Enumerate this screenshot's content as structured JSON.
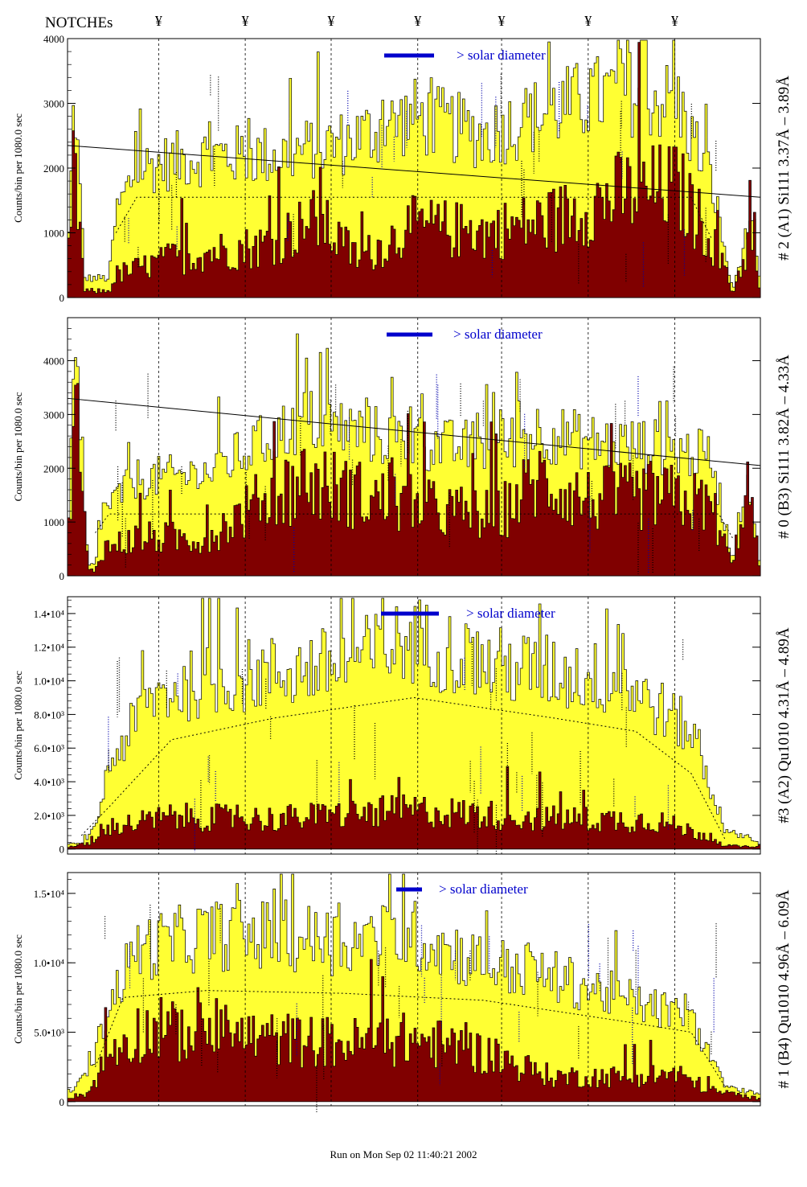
{
  "header": {
    "notches_label": "NOTCHEs",
    "notch_symbol": "¥"
  },
  "footer": "Run on Mon Sep 02 11:40:21 2002",
  "colors": {
    "total_fill": "#ffff33",
    "detail_fill": "#800000",
    "solar_bar": "#0000cc",
    "annotation_dark": "#000000",
    "annotation_blue": "#0000aa"
  },
  "notch_positions_frac": [
    0.1315,
    0.2565,
    0.3805,
    0.5055,
    0.6265,
    0.7515,
    0.8765
  ],
  "chart_data": [
    {
      "type": "area",
      "title": "",
      "ylabel": "Counts/bin per   1080.0 sec",
      "right_label": "# 2 (A1) Si111  3.37Å – 3.89Å",
      "solar_label": "> solar diameter",
      "ylim": [
        0,
        4000
      ],
      "yticks": [
        0,
        1000,
        2000,
        3000,
        4000
      ],
      "ytick_labels": [
        "0",
        "1000",
        "2000",
        "3000",
        "4000"
      ],
      "series": [
        {
          "name": "total",
          "profile": [
            [
              0,
              500
            ],
            [
              0.01,
              3200
            ],
            [
              0.025,
              300
            ],
            [
              0.06,
              300
            ],
            [
              0.07,
              1300
            ],
            [
              0.1,
              2000
            ],
            [
              0.2,
              2200
            ],
            [
              0.3,
              2200
            ],
            [
              0.4,
              2400
            ],
            [
              0.5,
              2800
            ],
            [
              0.6,
              2500
            ],
            [
              0.7,
              2900
            ],
            [
              0.8,
              3200
            ],
            [
              0.88,
              3000
            ],
            [
              0.93,
              1800
            ],
            [
              0.96,
              100
            ],
            [
              0.985,
              1200
            ],
            [
              1,
              200
            ]
          ]
        },
        {
          "name": "detail",
          "profile": [
            [
              0,
              400
            ],
            [
              0.01,
              2100
            ],
            [
              0.025,
              100
            ],
            [
              0.06,
              100
            ],
            [
              0.07,
              350
            ],
            [
              0.15,
              600
            ],
            [
              0.2,
              700
            ],
            [
              0.28,
              800
            ],
            [
              0.36,
              1200
            ],
            [
              0.42,
              600
            ],
            [
              0.5,
              1100
            ],
            [
              0.6,
              1000
            ],
            [
              0.7,
              1200
            ],
            [
              0.8,
              1600
            ],
            [
              0.88,
              1700
            ],
            [
              0.93,
              900
            ],
            [
              0.96,
              80
            ],
            [
              0.985,
              900
            ],
            [
              1,
              100
            ]
          ]
        }
      ],
      "trend_line": [
        [
          0,
          2350
        ],
        [
          1,
          1550
        ]
      ],
      "dotted_line": [
        [
          0.07,
          1000
        ],
        [
          0.1,
          1550
        ],
        [
          0.9,
          1550
        ],
        [
          0.93,
          900
        ]
      ]
    },
    {
      "type": "area",
      "title": "",
      "ylabel": "Counts/bin per   1080.0 sec",
      "right_label": "# 0 (B3) Si111  3.82Å – 4.33Å",
      "solar_label": "> solar diameter",
      "ylim": [
        0,
        4800
      ],
      "yticks": [
        0,
        1000,
        2000,
        3000,
        4000
      ],
      "ytick_labels": [
        "0",
        "1000",
        "2000",
        "3000",
        "4000"
      ],
      "series": [
        {
          "name": "total",
          "profile": [
            [
              0,
              400
            ],
            [
              0.01,
              3800
            ],
            [
              0.03,
              200
            ],
            [
              0.04,
              200
            ],
            [
              0.05,
              1200
            ],
            [
              0.1,
              1800
            ],
            [
              0.2,
              1900
            ],
            [
              0.27,
              2400
            ],
            [
              0.34,
              2900
            ],
            [
              0.45,
              2600
            ],
            [
              0.55,
              2400
            ],
            [
              0.62,
              2400
            ],
            [
              0.68,
              2700
            ],
            [
              0.75,
              2500
            ],
            [
              0.85,
              2400
            ],
            [
              0.93,
              2200
            ],
            [
              0.96,
              300
            ],
            [
              0.98,
              1900
            ],
            [
              1,
              200
            ]
          ]
        },
        {
          "name": "detail",
          "profile": [
            [
              0,
              300
            ],
            [
              0.01,
              3500
            ],
            [
              0.03,
              100
            ],
            [
              0.04,
              100
            ],
            [
              0.05,
              500
            ],
            [
              0.1,
              700
            ],
            [
              0.2,
              700
            ],
            [
              0.27,
              1300
            ],
            [
              0.34,
              1800
            ],
            [
              0.45,
              1400
            ],
            [
              0.55,
              1200
            ],
            [
              0.62,
              1100
            ],
            [
              0.68,
              1800
            ],
            [
              0.75,
              1400
            ],
            [
              0.85,
              1500
            ],
            [
              0.93,
              1300
            ],
            [
              0.96,
              150
            ],
            [
              0.98,
              1800
            ],
            [
              1,
              100
            ]
          ]
        }
      ],
      "trend_line": [
        [
          0,
          3300
        ],
        [
          1,
          2050
        ]
      ],
      "dotted_line": [
        [
          0.04,
          800
        ],
        [
          0.06,
          1150
        ],
        [
          0.94,
          1150
        ],
        [
          0.96,
          700
        ]
      ]
    },
    {
      "type": "area",
      "title": "",
      "ylabel": "Counts/bin per   1080.0 sec",
      "right_label": "#3 (A2) Qu1010  4.31Å – 4.89Å",
      "solar_label": "> solar diameter",
      "ylim": [
        -300,
        15000
      ],
      "yticks": [
        0,
        2000,
        4000,
        6000,
        8000,
        10000,
        12000,
        14000
      ],
      "ytick_labels": [
        "0",
        "2.0•10³",
        "4.0•10³",
        "6.0•10³",
        "8.0•10³",
        "1.0•10⁴",
        "1.2•10⁴",
        "1.4•10⁴"
      ],
      "series": [
        {
          "name": "total",
          "profile": [
            [
              0,
              300
            ],
            [
              0.02,
              300
            ],
            [
              0.04,
              1200
            ],
            [
              0.06,
              5000
            ],
            [
              0.12,
              9000
            ],
            [
              0.2,
              10000
            ],
            [
              0.3,
              10500
            ],
            [
              0.4,
              11000
            ],
            [
              0.5,
              12500
            ],
            [
              0.6,
              11000
            ],
            [
              0.7,
              10500
            ],
            [
              0.8,
              10000
            ],
            [
              0.9,
              7000
            ],
            [
              0.95,
              1000
            ],
            [
              0.98,
              800
            ],
            [
              1,
              300
            ]
          ]
        },
        {
          "name": "detail",
          "profile": [
            [
              0,
              100
            ],
            [
              0.04,
              400
            ],
            [
              0.06,
              1300
            ],
            [
              0.15,
              1900
            ],
            [
              0.3,
              1800
            ],
            [
              0.5,
              2300
            ],
            [
              0.7,
              1800
            ],
            [
              0.85,
              1700
            ],
            [
              0.92,
              800
            ],
            [
              0.95,
              200
            ],
            [
              1,
              100
            ]
          ]
        }
      ],
      "dotted_line": [
        [
          0.02,
          800
        ],
        [
          0.06,
          2500
        ],
        [
          0.15,
          6500
        ],
        [
          0.3,
          7800
        ],
        [
          0.5,
          9000
        ],
        [
          0.7,
          7800
        ],
        [
          0.82,
          7000
        ],
        [
          0.9,
          4500
        ],
        [
          0.95,
          500
        ]
      ]
    },
    {
      "type": "area",
      "title": "",
      "ylabel": "Counts/bin per   1080.0 sec",
      "right_label": "# 1 (B4) Qu1010 4.96Å – 6.09Å",
      "solar_label": "> solar diameter",
      "ylim": [
        -300,
        16500
      ],
      "yticks": [
        0,
        5000,
        10000,
        15000
      ],
      "ytick_labels": [
        "0",
        "5.0•10³",
        "1.0•10⁴",
        "1.5•10⁴"
      ],
      "series": [
        {
          "name": "total",
          "profile": [
            [
              0,
              500
            ],
            [
              0.03,
              2000
            ],
            [
              0.06,
              7000
            ],
            [
              0.1,
              11000
            ],
            [
              0.2,
              12000
            ],
            [
              0.3,
              12000
            ],
            [
              0.4,
              11500
            ],
            [
              0.5,
              12000
            ],
            [
              0.6,
              10000
            ],
            [
              0.7,
              9000
            ],
            [
              0.8,
              7500
            ],
            [
              0.9,
              6000
            ],
            [
              0.95,
              1000
            ],
            [
              1,
              600
            ]
          ]
        },
        {
          "name": "detail",
          "profile": [
            [
              0,
              300
            ],
            [
              0.03,
              600
            ],
            [
              0.06,
              3500
            ],
            [
              0.1,
              5000
            ],
            [
              0.2,
              5000
            ],
            [
              0.3,
              4500
            ],
            [
              0.4,
              4200
            ],
            [
              0.5,
              4500
            ],
            [
              0.6,
              3500
            ],
            [
              0.7,
              1800
            ],
            [
              0.8,
              1800
            ],
            [
              0.88,
              2000
            ],
            [
              0.93,
              800
            ],
            [
              1,
              200
            ]
          ]
        }
      ],
      "dotted_line": [
        [
          0.04,
          2500
        ],
        [
          0.08,
          7500
        ],
        [
          0.2,
          8000
        ],
        [
          0.4,
          7800
        ],
        [
          0.6,
          7300
        ],
        [
          0.8,
          5800
        ],
        [
          0.9,
          5000
        ],
        [
          0.95,
          1000
        ]
      ]
    }
  ]
}
